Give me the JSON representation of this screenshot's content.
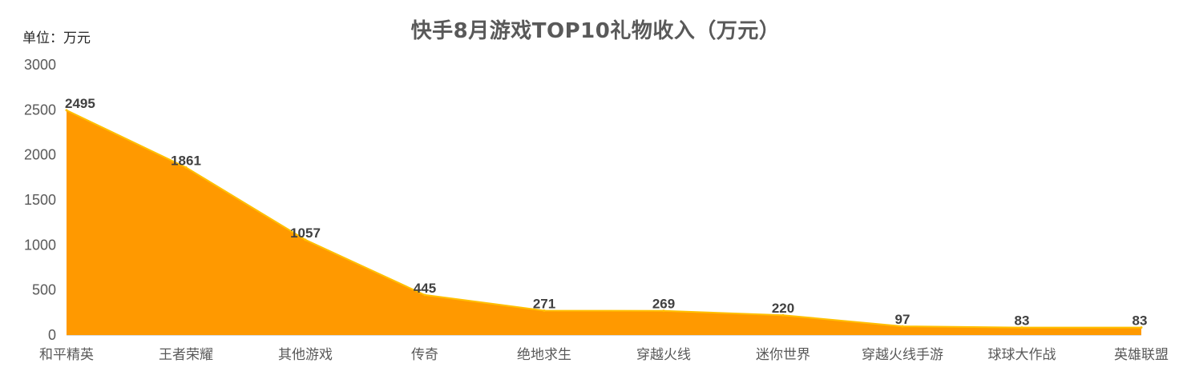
{
  "chart_data": {
    "type": "area",
    "title": "快手8月游戏TOP10礼物收入（万元）",
    "unit_label": "单位：万元",
    "xlabel": "",
    "ylabel": "",
    "categories": [
      "和平精英",
      "王者荣耀",
      "其他游戏",
      "传奇",
      "绝地求生",
      "穿越火线",
      "迷你世界",
      "穿越火线手游",
      "球球大作战",
      "英雄联盟"
    ],
    "values": [
      2495,
      1861,
      1057,
      445,
      271,
      269,
      220,
      97,
      83,
      83
    ],
    "data_labels": [
      "2495",
      "1861",
      "1057",
      "445",
      "271",
      "269",
      "220",
      "97",
      "83",
      "83"
    ],
    "ylim": [
      0,
      3000
    ],
    "yticks": [
      0,
      500,
      1000,
      1500,
      2000,
      2500,
      3000
    ],
    "ytick_labels": [
      "0",
      "500",
      "1000",
      "1500",
      "2000",
      "2500",
      "3000"
    ],
    "grid": false,
    "legend": "none",
    "colors": {
      "fill": "#FF9900",
      "stroke": "#FFC000",
      "axis": "#D9D9D9"
    }
  }
}
